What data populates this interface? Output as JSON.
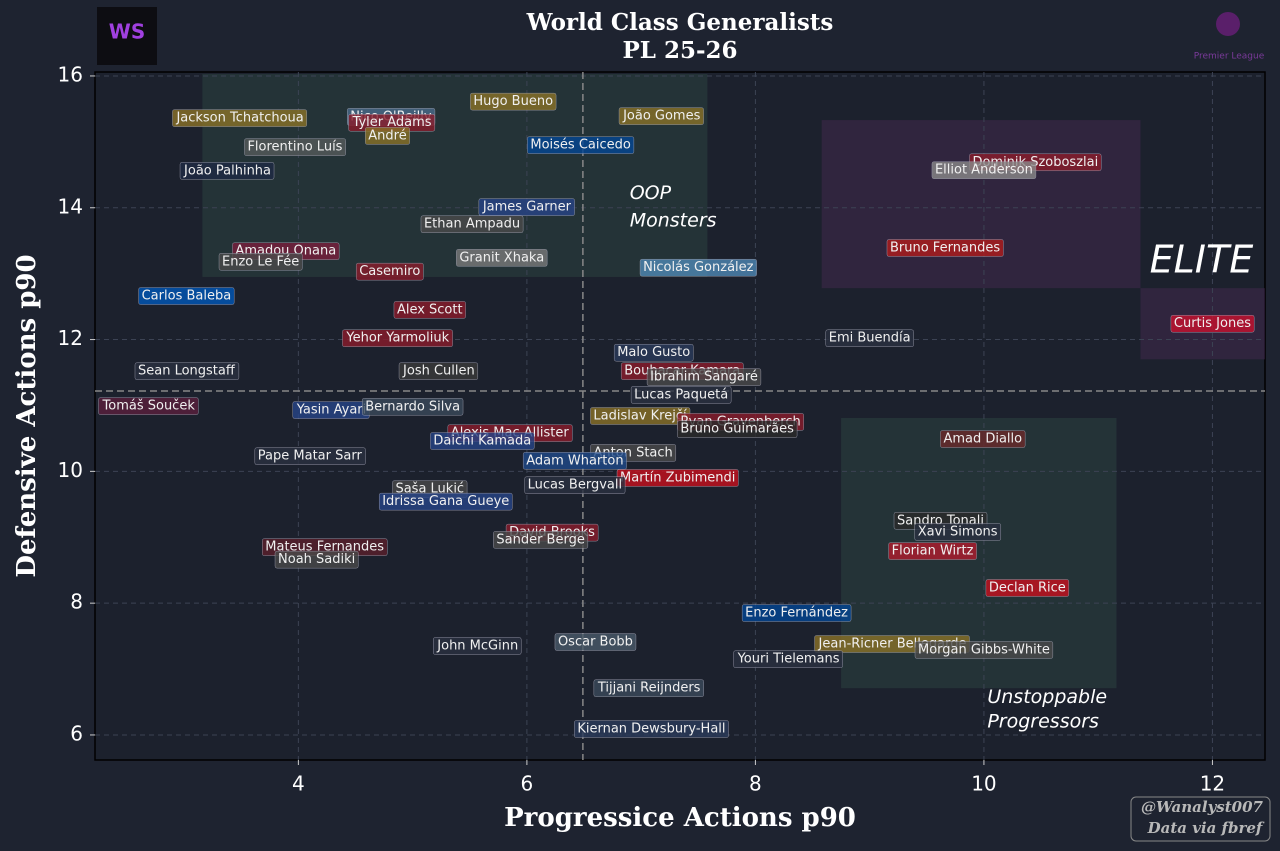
{
  "chart_data": {
    "type": "scatter",
    "title": "World Class Generalists",
    "subtitle": "PL 25-26",
    "x_label": "Progressice Actions p90",
    "y_label": "Defensive Actions p90",
    "logo_left": "WS",
    "logo_right": "Premier League",
    "credit": "@Wanalyst007",
    "source": "Data via fbref",
    "xlim": [
      2.22,
      12.46
    ],
    "ylim": [
      5.62,
      16.06
    ],
    "xticks": [
      4,
      6,
      8,
      10,
      12
    ],
    "yticks": [
      6,
      8,
      10,
      12,
      14,
      16
    ],
    "grid": true,
    "vlines": [
      6.49
    ],
    "hlines": [
      11.22
    ],
    "regions": [
      {
        "x": [
          3.16,
          7.58
        ],
        "y": [
          12.95,
          16.03
        ],
        "color": "#2e4a44"
      },
      {
        "x": [
          8.58,
          11.37
        ],
        "y": [
          12.78,
          15.33
        ],
        "color": "#4a2a55"
      },
      {
        "x": [
          11.37,
          12.46
        ],
        "y": [
          11.7,
          12.78
        ],
        "color": "#4a2a55"
      },
      {
        "x": [
          8.75,
          11.16
        ],
        "y": [
          6.71,
          10.81
        ],
        "color": "#2e4a44"
      }
    ],
    "annotations": [
      {
        "text": "OOP",
        "x": 6.9,
        "y": 14.22,
        "size": "medium"
      },
      {
        "text": "Monsters",
        "x": 6.9,
        "y": 13.8,
        "size": "medium"
      },
      {
        "text": "ELITE",
        "x": 11.45,
        "y": 13.18,
        "size": "large"
      },
      {
        "text": "Unstoppable",
        "x": 10.03,
        "y": 6.57,
        "size": "medium"
      },
      {
        "text": "Progressors",
        "x": 10.03,
        "y": 6.2,
        "size": "medium"
      }
    ],
    "points": [
      {
        "name": "Jackson Tchatchoua",
        "x": 3.49,
        "y": 15.36,
        "color": "#8a7228"
      },
      {
        "name": "Nico O'Reilly",
        "x": 4.81,
        "y": 15.38,
        "color": "#4a6a8a"
      },
      {
        "name": "Tyler Adams",
        "x": 4.82,
        "y": 15.29,
        "color": "#8a1c2b"
      },
      {
        "name": "André",
        "x": 4.78,
        "y": 15.09,
        "color": "#8a7228"
      },
      {
        "name": "Hugo Bueno",
        "x": 5.88,
        "y": 15.61,
        "color": "#8a7228"
      },
      {
        "name": "João Gomes",
        "x": 7.18,
        "y": 15.39,
        "color": "#8a7228"
      },
      {
        "name": "Florentino Luís",
        "x": 3.97,
        "y": 14.92,
        "color": "#555a5a"
      },
      {
        "name": "Moisés Caicedo",
        "x": 6.47,
        "y": 14.95,
        "color": "#034694"
      },
      {
        "name": "João Palhinha",
        "x": 3.38,
        "y": 14.56,
        "color": "#1f2a44"
      },
      {
        "name": "Dominik Szoboszlai",
        "x": 10.45,
        "y": 14.69,
        "color": "#8a1c2b"
      },
      {
        "name": "Elliot Anderson",
        "x": 10.0,
        "y": 14.57,
        "color": "#8a8a8a"
      },
      {
        "name": "James Garner",
        "x": 6.0,
        "y": 14.01,
        "color": "#274488"
      },
      {
        "name": "Ethan Ampadu",
        "x": 5.52,
        "y": 13.75,
        "color": "#4a4a4a"
      },
      {
        "name": "Amadou Onana",
        "x": 3.89,
        "y": 13.34,
        "color": "#7a1f3d"
      },
      {
        "name": "Enzo Le Fée",
        "x": 3.67,
        "y": 13.18,
        "color": "#4a4a4a"
      },
      {
        "name": "Bruno Fernandes",
        "x": 9.66,
        "y": 13.39,
        "color": "#b01c1c"
      },
      {
        "name": "Granit Xhaka",
        "x": 5.78,
        "y": 13.24,
        "color": "#7a7a7a"
      },
      {
        "name": "Nicolás González",
        "x": 7.5,
        "y": 13.09,
        "color": "#4f88b5"
      },
      {
        "name": "Casemiro",
        "x": 4.8,
        "y": 13.03,
        "color": "#8a1c2b"
      },
      {
        "name": "Carlos Baleba",
        "x": 3.02,
        "y": 12.66,
        "color": "#0057b8"
      },
      {
        "name": "Curtis Jones",
        "x": 12.0,
        "y": 12.24,
        "color": "#c8102e"
      },
      {
        "name": "Alex Scott",
        "x": 5.15,
        "y": 12.45,
        "color": "#8a1c2b"
      },
      {
        "name": "Yehor Yarmoliuk",
        "x": 4.87,
        "y": 12.02,
        "color": "#8a1c2b"
      },
      {
        "name": "Emi Buendía",
        "x": 9.0,
        "y": 12.02,
        "color": "#2a3040"
      },
      {
        "name": "Malo Gusto",
        "x": 7.11,
        "y": 11.8,
        "color": "#2a3a5a"
      },
      {
        "name": "Sean Longstaff",
        "x": 3.02,
        "y": 11.52,
        "color": "#2a3040"
      },
      {
        "name": "Josh Cullen",
        "x": 5.23,
        "y": 11.52,
        "color": "#3a3a3a"
      },
      {
        "name": "Boubacar Kamara",
        "x": 7.36,
        "y": 11.52,
        "color": "#8a1c2b"
      },
      {
        "name": "Ibrahim Sangaré",
        "x": 7.55,
        "y": 11.43,
        "color": "#4a4a4a"
      },
      {
        "name": "Lucas Paquetá",
        "x": 7.35,
        "y": 11.16,
        "color": "#2a3040"
      },
      {
        "name": "Tomáš Souček",
        "x": 2.69,
        "y": 10.99,
        "color": "#5a1f3d"
      },
      {
        "name": "Yasin Ayari",
        "x": 4.29,
        "y": 10.93,
        "color": "#274488"
      },
      {
        "name": "Bernardo Silva",
        "x": 5.0,
        "y": 10.98,
        "color": "#3a4a5a"
      },
      {
        "name": "Ladislav Krejčí",
        "x": 6.99,
        "y": 10.84,
        "color": "#8a7228"
      },
      {
        "name": "Ryan Gravenberch",
        "x": 7.87,
        "y": 10.75,
        "color": "#8a1c2b"
      },
      {
        "name": "Bruno Guimarães",
        "x": 7.84,
        "y": 10.64,
        "color": "#2a2a2a"
      },
      {
        "name": "Alexis Mac Allister",
        "x": 5.85,
        "y": 10.58,
        "color": "#8a1c2b"
      },
      {
        "name": "Daichi Kamada",
        "x": 5.61,
        "y": 10.46,
        "color": "#274488"
      },
      {
        "name": "Amad Diallo",
        "x": 9.99,
        "y": 10.49,
        "color": "#6a2a2a"
      },
      {
        "name": "Anton Stach",
        "x": 6.93,
        "y": 10.28,
        "color": "#4a4a4a"
      },
      {
        "name": "Adam Wharton",
        "x": 6.42,
        "y": 10.16,
        "color": "#1f4a8a"
      },
      {
        "name": "Pape Matar Sarr",
        "x": 4.1,
        "y": 10.23,
        "color": "#2a3040"
      },
      {
        "name": "Martín Zubimendi",
        "x": 7.32,
        "y": 9.9,
        "color": "#c8101e"
      },
      {
        "name": "Lucas Bergvall",
        "x": 6.42,
        "y": 9.79,
        "color": "#2a3040"
      },
      {
        "name": "Saša Lukić",
        "x": 5.15,
        "y": 9.73,
        "color": "#4a4a4a"
      },
      {
        "name": "Idrissa Gana Gueye",
        "x": 5.29,
        "y": 9.54,
        "color": "#274488"
      },
      {
        "name": "Sandro Tonali",
        "x": 9.62,
        "y": 9.25,
        "color": "#2a2a2a"
      },
      {
        "name": "Xavi Simons",
        "x": 9.77,
        "y": 9.08,
        "color": "#2a3040"
      },
      {
        "name": "David Brooks",
        "x": 6.22,
        "y": 9.07,
        "color": "#8a1c2b"
      },
      {
        "name": "Sander Berge",
        "x": 6.12,
        "y": 8.96,
        "color": "#4a4a4a"
      },
      {
        "name": "Florian Wirtz",
        "x": 9.55,
        "y": 8.79,
        "color": "#b01c2e"
      },
      {
        "name": "Mateus Fernandes",
        "x": 4.23,
        "y": 8.85,
        "color": "#5a1f2b"
      },
      {
        "name": "Noah Sadiki",
        "x": 4.16,
        "y": 8.66,
        "color": "#4a4a4a"
      },
      {
        "name": "Declan Rice",
        "x": 10.38,
        "y": 8.23,
        "color": "#c8101e"
      },
      {
        "name": "Enzo Fernández",
        "x": 8.36,
        "y": 7.85,
        "color": "#034694"
      },
      {
        "name": "Jean-Ricner Bellegarde",
        "x": 9.2,
        "y": 7.38,
        "color": "#8a7228"
      },
      {
        "name": "Morgan Gibbs-White",
        "x": 10.0,
        "y": 7.29,
        "color": "#4a4a4a"
      },
      {
        "name": "Oscar Bobb",
        "x": 6.6,
        "y": 7.41,
        "color": "#4a5a6a"
      },
      {
        "name": "John McGinn",
        "x": 5.57,
        "y": 7.35,
        "color": "#2a3040"
      },
      {
        "name": "Youri Tielemans",
        "x": 8.29,
        "y": 7.15,
        "color": "#2a3040"
      },
      {
        "name": "Tijjani Reijnders",
        "x": 7.07,
        "y": 6.71,
        "color": "#3a4a5a"
      },
      {
        "name": "Kiernan Dewsbury-Hall",
        "x": 7.09,
        "y": 6.09,
        "color": "#2a3a5a"
      }
    ]
  }
}
